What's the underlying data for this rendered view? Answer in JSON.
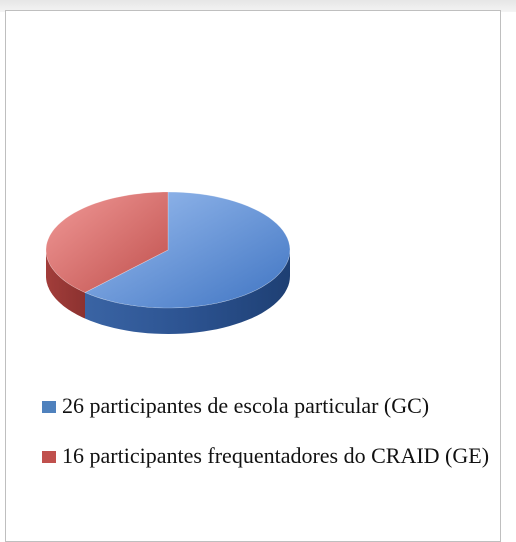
{
  "chart_data": {
    "type": "pie3d",
    "series": [
      {
        "name": "26 participantes de escola particular (GC)",
        "color": "#4f81bd",
        "values": [
          26
        ]
      },
      {
        "name": "16 participantes frequentadores do CRAID (GE)",
        "color": "#c0504d",
        "values": [
          16
        ]
      }
    ],
    "legend": "bottom"
  }
}
